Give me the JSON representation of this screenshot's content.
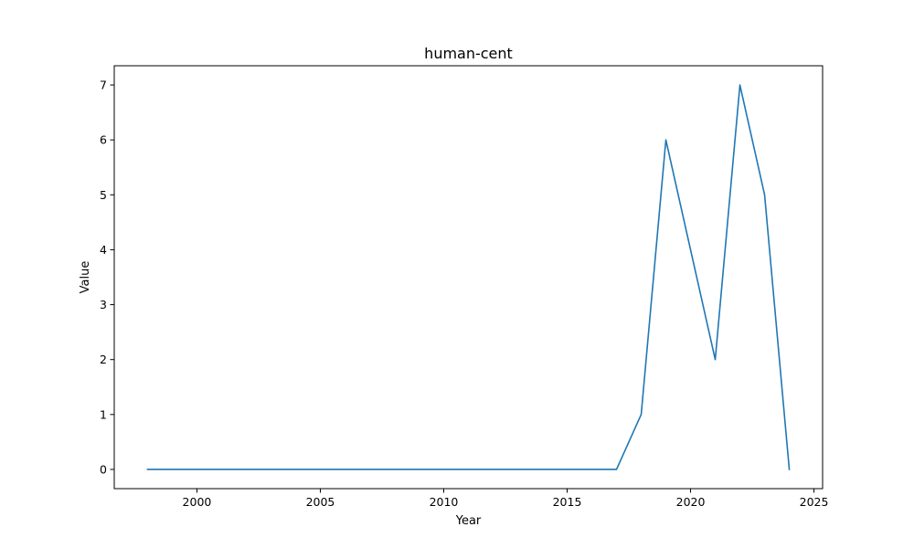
{
  "chart_data": {
    "type": "line",
    "title": "human-cent",
    "xlabel": "Year",
    "ylabel": "Value",
    "xlim": [
      1996.65,
      2025.35
    ],
    "ylim": [
      -0.35,
      7.35
    ],
    "xticks": [
      2000,
      2005,
      2010,
      2015,
      2020,
      2025
    ],
    "yticks": [
      0,
      1,
      2,
      3,
      4,
      5,
      6,
      7
    ],
    "grid": false,
    "series": [
      {
        "color": "#1f77b4",
        "x": [
          1998,
          1999,
          2000,
          2001,
          2002,
          2003,
          2004,
          2005,
          2006,
          2007,
          2008,
          2009,
          2010,
          2011,
          2012,
          2013,
          2014,
          2015,
          2016,
          2017,
          2018,
          2019,
          2020,
          2021,
          2022,
          2023,
          2024
        ],
        "y": [
          0,
          0,
          0,
          0,
          0,
          0,
          0,
          0,
          0,
          0,
          0,
          0,
          0,
          0,
          0,
          0,
          0,
          0,
          0,
          0,
          1,
          6,
          4,
          2,
          7,
          5,
          0
        ]
      }
    ]
  }
}
